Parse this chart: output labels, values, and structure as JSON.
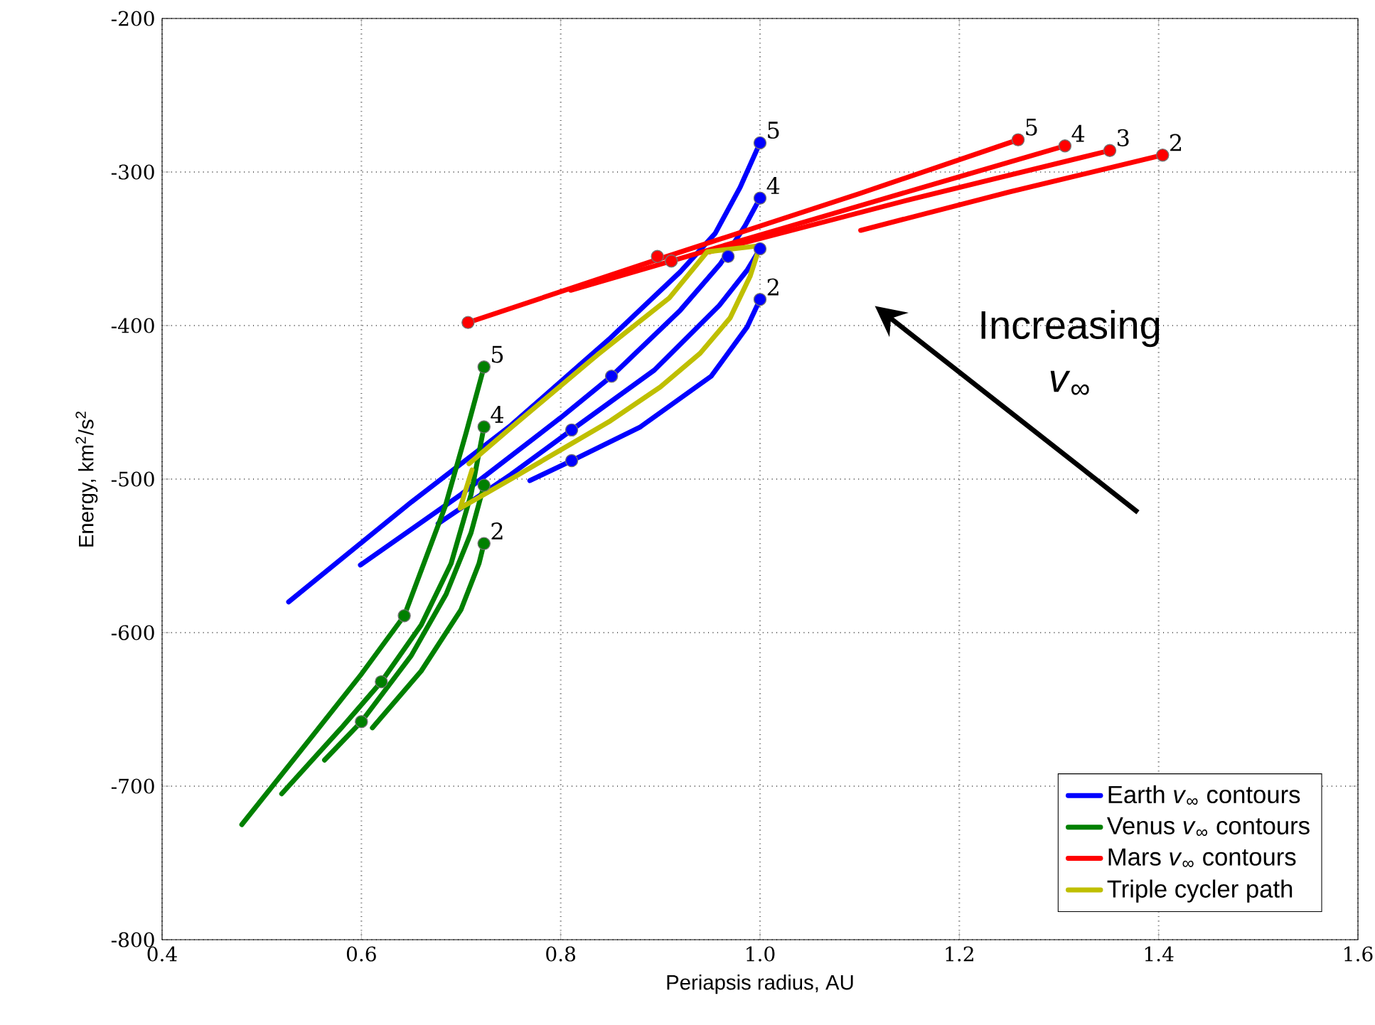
{
  "chart_data": {
    "type": "line",
    "xlabel": "Periapsis radius, AU",
    "ylabel": "Energy, km$^{2}$/s$^{2}$",
    "xlim": [
      0.4,
      1.6
    ],
    "ylim": [
      -800,
      -200
    ],
    "xticks": [
      0.4,
      0.6,
      0.8,
      {
        "value": 1.0,
        "label": "1.0"
      },
      1.2,
      1.4,
      1.6
    ],
    "yticks": [
      -800,
      -700,
      -600,
      -500,
      -400,
      -300,
      -200
    ],
    "grid": true,
    "legend": "bottom right",
    "marker": "none",
    "line_style": "solid",
    "series": [
      {
        "name": "Earth *v*$_{∞}$ contours",
        "color": "#0000ff",
        "x": [
          0.769,
          0.811,
          0.88,
          0.951,
          0.987,
          1.0
        ],
        "values": [
          -501,
          -488,
          -466,
          -433,
          -401,
          -383
        ]
      },
      {
        "color": "#0000ff",
        "x": [
          0.677,
          0.75,
          0.811,
          0.894,
          0.959,
          0.987,
          1.0
        ],
        "values": [
          -529,
          -497,
          -468,
          -429,
          -387,
          -364,
          -350
        ]
      },
      {
        "color": "#0000ff",
        "x": [
          0.599,
          0.7,
          0.8,
          0.851,
          0.92,
          0.96,
          0.985,
          1.0
        ],
        "values": [
          -556,
          -510,
          -460,
          -433,
          -390,
          -360,
          -335,
          -317
        ]
      },
      {
        "color": "#0000ff",
        "x": [
          0.527,
          0.65,
          0.75,
          0.85,
          0.92,
          0.955,
          0.98,
          1.0
        ],
        "values": [
          -580,
          -515,
          -465,
          -408,
          -365,
          -340,
          -310,
          -281
        ]
      },
      {
        "type": "scatter",
        "marker": "circle",
        "color": "#0000ff",
        "x": [
          1.0,
          1.0,
          1.0,
          1.0,
          0.811,
          0.811,
          0.851,
          0.968
        ],
        "values": [
          -281,
          -317,
          -350,
          -383,
          -468,
          -488,
          -433,
          -355
        ]
      },
      {
        "name": "Venus *v*$_{∞}$ contours",
        "color": "#008000",
        "x": [
          0.611,
          0.66,
          0.7,
          0.718,
          0.723
        ],
        "values": [
          -662,
          -625,
          -585,
          -555,
          -542
        ]
      },
      {
        "color": "#008000",
        "x": [
          0.563,
          0.6,
          0.65,
          0.685,
          0.71,
          0.723
        ],
        "values": [
          -683,
          -658,
          -615,
          -575,
          -535,
          -504
        ]
      },
      {
        "color": "#008000",
        "x": [
          0.52,
          0.58,
          0.62,
          0.66,
          0.69,
          0.71,
          0.723
        ],
        "values": [
          -705,
          -662,
          -632,
          -595,
          -555,
          -510,
          -466
        ]
      },
      {
        "color": "#008000",
        "x": [
          0.48,
          0.55,
          0.6,
          0.643,
          0.684,
          0.705,
          0.723
        ],
        "values": [
          -725,
          -668,
          -627,
          -589,
          -518,
          -470,
          -427
        ]
      },
      {
        "type": "scatter",
        "marker": "circle",
        "color": "#008000",
        "x": [
          0.723,
          0.723,
          0.723,
          0.723,
          0.643,
          0.62,
          0.6
        ],
        "values": [
          -427,
          -466,
          -504,
          -542,
          -589,
          -632,
          -658
        ]
      },
      {
        "name": "Mars *v*$_{∞}$ contours",
        "color": "#ff0000",
        "x": [
          1.101,
          1.25,
          1.404
        ],
        "values": [
          -338,
          -313,
          -289
        ]
      },
      {
        "color": "#ff0000",
        "x": [
          0.949,
          1.15,
          1.351
        ],
        "values": [
          -352,
          -318,
          -286
        ]
      },
      {
        "color": "#ff0000",
        "x": [
          0.81,
          0.911,
          1.1,
          1.306
        ],
        "values": [
          -377,
          -358,
          -322,
          -283
        ]
      },
      {
        "color": "#ff0000",
        "x": [
          0.707,
          0.897,
          1.1,
          1.259
        ],
        "values": [
          -398,
          -357,
          -314,
          -279
        ]
      },
      {
        "type": "scatter",
        "marker": "circle",
        "color": "#ff0000",
        "x": [
          1.259,
          1.306,
          1.351,
          1.404,
          0.707,
          0.897,
          0.911
        ],
        "values": [
          -279,
          -283,
          -286,
          -289,
          -398,
          -355,
          -358
        ]
      },
      {
        "name": "Triple cycler path",
        "color": "#bfbf00",
        "x": [
          0.708,
          0.751,
          0.837,
          0.909,
          0.947,
          1.0,
          0.99,
          0.97,
          0.94,
          0.9,
          0.85,
          0.8,
          0.75,
          0.699,
          0.711
        ],
        "values": [
          -490,
          -466,
          -419,
          -382,
          -352,
          -348,
          -368,
          -395,
          -418,
          -440,
          -462,
          -481,
          -500,
          -519,
          -494
        ]
      }
    ],
    "annotations": [
      "Increasing *v*$_{∞}$",
      {
        "text": "5",
        "x": 1.0,
        "y": -281
      },
      {
        "text": "4",
        "x": 1.0,
        "y": -317
      },
      {
        "text": "2",
        "x": 1.0,
        "y": -383
      },
      {
        "text": "5",
        "x": 0.723,
        "y": -427
      },
      {
        "text": "4",
        "x": 0.723,
        "y": -466
      },
      {
        "text": "2",
        "x": 0.723,
        "y": -542
      },
      {
        "text": "5",
        "x": 1.259,
        "y": -279
      },
      {
        "text": "4",
        "x": 1.306,
        "y": -283
      },
      {
        "text": "3",
        "x": 1.351,
        "y": -286
      },
      {
        "text": "2",
        "x": 1.404,
        "y": -289
      }
    ]
  }
}
